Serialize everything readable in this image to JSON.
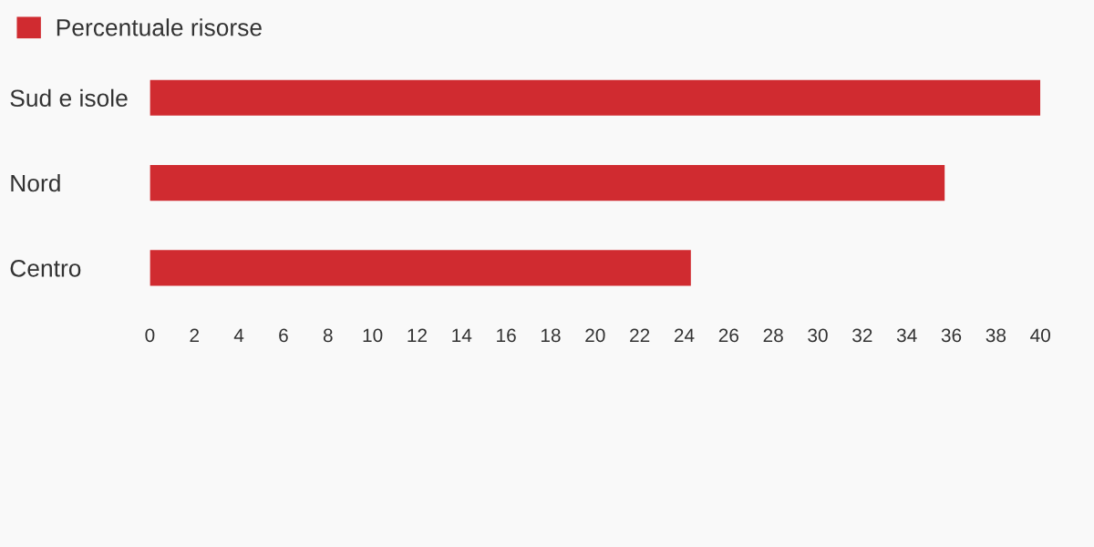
{
  "chart_data": {
    "type": "bar",
    "orientation": "horizontal",
    "categories": [
      "Sud e isole",
      "Nord",
      "Centro"
    ],
    "series": [
      {
        "name": "Percentuale risorse",
        "color": "#d02b30",
        "values": [
          40,
          35.7,
          24.3
        ]
      }
    ],
    "xlim": [
      0,
      40
    ],
    "xticks": [
      0,
      2,
      4,
      6,
      8,
      10,
      12,
      14,
      16,
      18,
      20,
      22,
      24,
      26,
      28,
      30,
      32,
      34,
      36,
      38,
      40
    ],
    "grid": false,
    "legend": "top left"
  }
}
